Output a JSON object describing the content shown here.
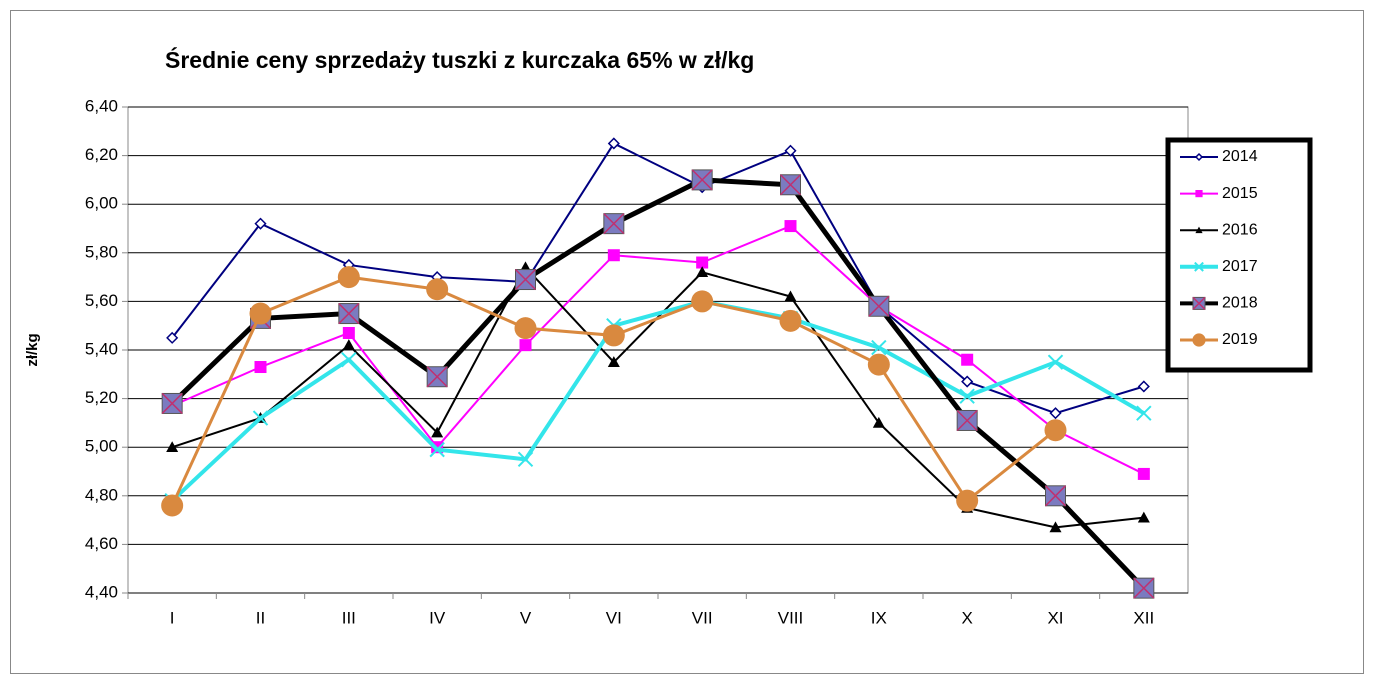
{
  "chart_data": {
    "type": "line",
    "title": "Średnie ceny sprzedaży tuszki z kurczaka 65% w zł/kg",
    "y_label": "zł/kg",
    "categories": [
      "I",
      "II",
      "III",
      "IV",
      "V",
      "VI",
      "VII",
      "VIII",
      "IX",
      "X",
      "XI",
      "XII"
    ],
    "series": [
      {
        "name": "2014",
        "color": "#000080",
        "values": [
          5.45,
          5.92,
          5.75,
          5.7,
          5.68,
          6.25,
          6.07,
          6.22,
          5.58,
          5.27,
          5.14,
          5.25
        ]
      },
      {
        "name": "2015",
        "color": "#ff00ff",
        "values": [
          5.17,
          5.33,
          5.47,
          5.0,
          5.42,
          5.79,
          5.76,
          5.91,
          5.58,
          5.36,
          5.07,
          4.89
        ]
      },
      {
        "name": "2016",
        "color": "#000000",
        "values": [
          5.0,
          5.12,
          5.42,
          5.06,
          5.74,
          5.35,
          5.72,
          5.62,
          5.1,
          4.75,
          4.67,
          4.71
        ]
      },
      {
        "name": "2017",
        "color": "#33e5ea",
        "values": [
          4.78,
          5.12,
          5.36,
          4.99,
          4.95,
          5.5,
          5.6,
          5.53,
          5.41,
          5.21,
          5.35,
          5.14
        ]
      },
      {
        "name": "2018",
        "color": "#000000",
        "values": [
          5.18,
          5.53,
          5.55,
          5.29,
          5.69,
          5.92,
          6.1,
          6.08,
          5.58,
          5.11,
          4.8,
          4.42
        ]
      },
      {
        "name": "2019",
        "color": "#d9893f",
        "values": [
          4.76,
          5.55,
          5.7,
          5.65,
          5.49,
          5.46,
          5.6,
          5.52,
          5.34,
          4.78,
          5.07,
          null
        ]
      }
    ],
    "ylim": [
      4.4,
      6.4
    ],
    "yticks": [
      {
        "value": 4.4,
        "label": "4,40"
      },
      {
        "value": 4.6,
        "label": "4,60"
      },
      {
        "value": 4.8,
        "label": "4,80"
      },
      {
        "value": 5.0,
        "label": "5,00"
      },
      {
        "value": 5.2,
        "label": "5,20"
      },
      {
        "value": 5.4,
        "label": "5,40"
      },
      {
        "value": 5.6,
        "label": "5,60"
      },
      {
        "value": 5.8,
        "label": "5,80"
      },
      {
        "value": 6.0,
        "label": "6,00"
      },
      {
        "value": 6.2,
        "label": "6,20"
      },
      {
        "value": 6.4,
        "label": "6,40"
      }
    ],
    "grid": true
  }
}
